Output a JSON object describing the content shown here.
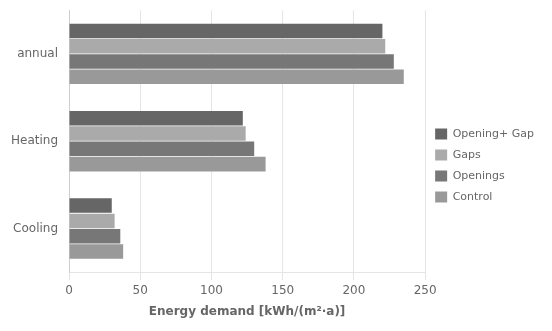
{
  "chart_data": {
    "type": "bar",
    "orientation": "horizontal",
    "categories": [
      "annual",
      "Heating",
      "Cooling"
    ],
    "series": [
      {
        "name": "Opening+ Gap",
        "color": "#666666",
        "values": [
          220,
          122,
          30
        ]
      },
      {
        "name": "Gaps",
        "color": "#aaaaaa",
        "values": [
          222,
          124,
          32
        ]
      },
      {
        "name": "Openings",
        "color": "#777777",
        "values": [
          228,
          130,
          36
        ]
      },
      {
        "name": "Control",
        "color": "#999999",
        "values": [
          235,
          138,
          38
        ]
      }
    ],
    "xlabel": "Energy demand [kWh/(m²·a)]",
    "xlim": [
      0,
      250
    ],
    "xticks": [
      0,
      50,
      100,
      150,
      200,
      250
    ],
    "grid": true,
    "legend": "right"
  }
}
